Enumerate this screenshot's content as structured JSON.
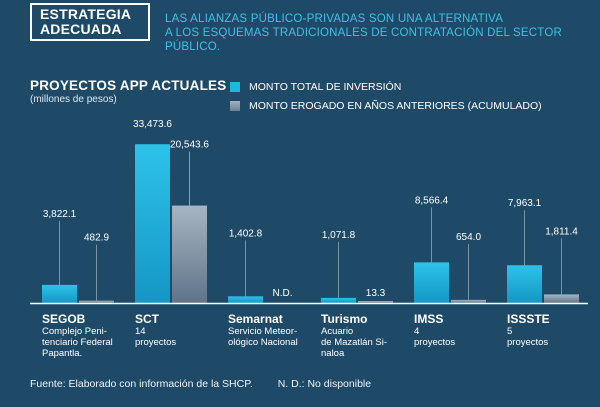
{
  "header": {
    "badge_line1": "ESTRATEGIA",
    "badge_line2": "ADECUADA",
    "subtitle_line1": "LAS ALIANZAS PÚBLICO-PRIVADAS SON UNA ALTERNATIVA",
    "subtitle_line2": "A LOS ESQUEMAS TRADICIONALES DE CONTRATACIÓN DEL SECTOR PÚBLICO."
  },
  "footer": {
    "source": "Fuente: Elaborado con información de la SHCP.",
    "note": "N. D.: No disponible"
  },
  "colors": {
    "background": "#1e4a68",
    "series_total": "#1fb6e0",
    "series_spent": "#7f91a3",
    "subtitle": "#3ec1e6"
  },
  "chart_data": {
    "type": "bar",
    "title": "PROYECTOS APP ACTUALES",
    "unit": "(millones de pesos)",
    "legend_placement": "top-right",
    "grid": false,
    "ylim": [
      0,
      35000
    ],
    "categories": [
      "SEGOB",
      "SCT",
      "Semarnat",
      "Turismo",
      "IMSS",
      "ISSSTE"
    ],
    "category_sublabels": [
      [
        "Complejo Peni-",
        "tenciario Federal",
        "Papantla."
      ],
      [
        "14",
        "proyectos"
      ],
      [
        "Servicio Meteor-",
        "ológico Nacional"
      ],
      [
        "Acuario",
        "de Mazatlán Si-",
        "naloa"
      ],
      [
        "4",
        "proyectos"
      ],
      [
        "5",
        "proyectos"
      ]
    ],
    "series": [
      {
        "name": "MONTO TOTAL DE INVERSIÓN",
        "values": [
          3822.1,
          33473.6,
          1402.8,
          1071.8,
          8566.4,
          7963.1
        ],
        "labels": [
          "3,822.1",
          "33,473.6",
          "1,402.8",
          "1,071.8",
          "8,566.4",
          "7,963.1"
        ]
      },
      {
        "name": "MONTO EROGADO EN AÑOS ANTERIORES (ACUMULADO)",
        "values": [
          482.9,
          20543.6,
          null,
          13.3,
          654.0,
          1811.4
        ],
        "labels": [
          "482.9",
          "20,543.6",
          "N.D.",
          "13.3",
          "654.0",
          "1,811.4"
        ]
      }
    ]
  }
}
